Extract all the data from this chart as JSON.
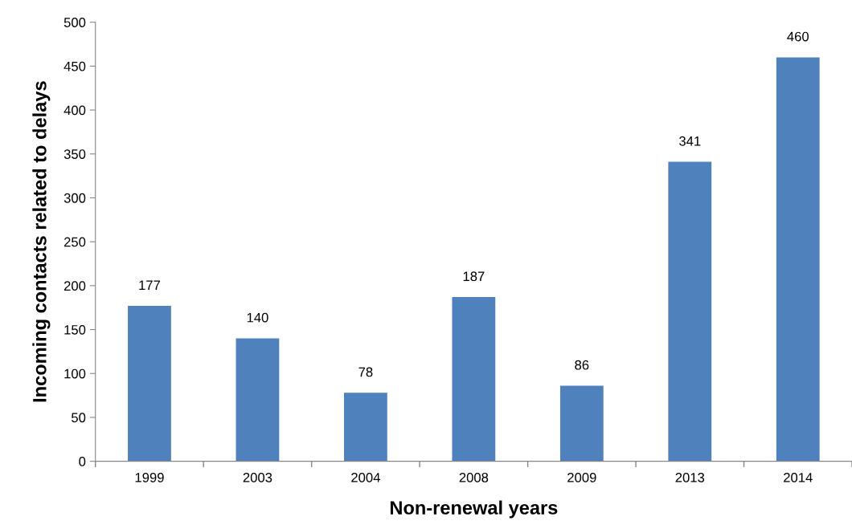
{
  "chart_data": {
    "type": "bar",
    "xlabel": "Non-renewal years",
    "ylabel": "Incoming contacts related to delays",
    "categories": [
      "1999",
      "2003",
      "2004",
      "2008",
      "2009",
      "2013",
      "2014"
    ],
    "values": [
      177,
      140,
      78,
      187,
      86,
      341,
      460
    ],
    "color": "#4f81bd",
    "ylim": [
      0,
      500
    ],
    "yticks": [
      0,
      50,
      100,
      150,
      200,
      250,
      300,
      350,
      400,
      450,
      500
    ],
    "grid": false,
    "data_labels": true
  }
}
